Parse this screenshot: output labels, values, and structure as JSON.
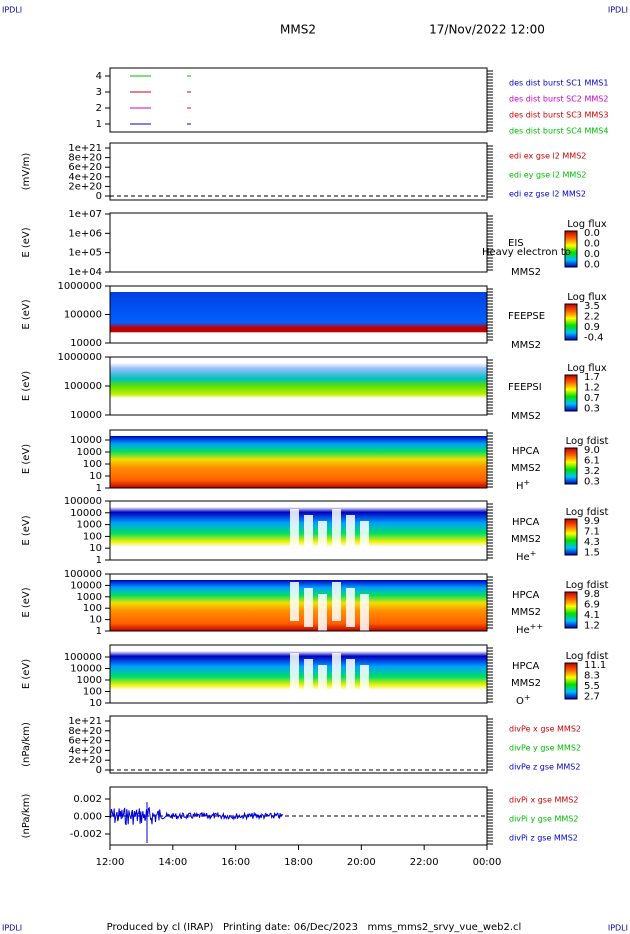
{
  "header": {
    "corner_left": "IPDLI",
    "corner_right": "IPDLI",
    "spacecraft": "MMS2",
    "datetime": "17/Nov/2022 12:00"
  },
  "footer": {
    "corner_left": "IPDLI",
    "corner_right": "IPDLI",
    "text": "Produced by cl (IRAP)   Printing date: 06/Dec/2023   mms_mms2_srvy_vue_web2.cl"
  },
  "xaxis": {
    "ticks": [
      "12:00",
      "14:00",
      "16:00",
      "18:00",
      "20:00",
      "22:00",
      "00:00"
    ]
  },
  "panels": [
    {
      "ylabel": "",
      "yticks": [
        "4",
        "3",
        "2",
        "1"
      ],
      "legend": [
        {
          "text": "des dist burst SC1 MMS1",
          "color": "#0000cc"
        },
        {
          "text": "des dist burst SC2 MMS2",
          "color": "#cc00cc"
        },
        {
          "text": "des dist burst SC3 MMS3",
          "color": "#cc0000"
        },
        {
          "text": "des dist burst SC4 MMS4",
          "color": "#00bb00"
        }
      ]
    },
    {
      "ylabel": "(mV/m)",
      "yticks": [
        "1e+21",
        "8e+20",
        "6e+20",
        "4e+20",
        "2e+20",
        "0"
      ],
      "legend": [
        {
          "text": "edi ex gse l2 MMS2",
          "color": "#cc0000"
        },
        {
          "text": "edi ey gse l2 MMS2",
          "color": "#00bb00"
        },
        {
          "text": "edi ez gse l2 MMS2",
          "color": "#0000cc"
        }
      ]
    },
    {
      "ylabel": "E (eV)",
      "yticks": [
        "1e+07",
        "1e+06",
        "1e+05",
        "1e+04"
      ],
      "colorbar": {
        "title": "Log flux",
        "ticks": [
          "0.0",
          "0.0",
          "0.0",
          "0.0"
        ]
      },
      "instrument": "EIS",
      "spacecraft": "MMS2",
      "overlay": "Heavy electron to"
    },
    {
      "ylabel": "E (eV)",
      "yticks": [
        "1000000",
        "100000",
        "10000"
      ],
      "colorbar": {
        "title": "Log flux",
        "ticks": [
          "3.5",
          "2.2",
          "0.9",
          "-0.4"
        ]
      },
      "instrument": "FEEPSE",
      "spacecraft": "MMS2"
    },
    {
      "ylabel": "E (eV)",
      "yticks": [
        "1000000",
        "100000",
        "10000"
      ],
      "colorbar": {
        "title": "Log flux",
        "ticks": [
          "1.7",
          "1.2",
          "0.7",
          "0.3"
        ]
      },
      "instrument": "FEEPSI",
      "spacecraft": "MMS2"
    },
    {
      "ylabel": "E (eV)",
      "yticks": [
        "10000",
        "1000",
        "100",
        "10",
        "1"
      ],
      "colorbar": {
        "title": "Log fdist",
        "ticks": [
          "9.0",
          "6.1",
          "3.2",
          "0.3"
        ]
      },
      "instrument": "HPCA",
      "spacecraft": "MMS2",
      "species": "H",
      "charge": "+"
    },
    {
      "ylabel": "E (eV)",
      "yticks": [
        "100000",
        "10000",
        "1000",
        "100",
        "10",
        "1"
      ],
      "colorbar": {
        "title": "Log fdist",
        "ticks": [
          "9.9",
          "7.1",
          "4.3",
          "1.5"
        ]
      },
      "instrument": "HPCA",
      "spacecraft": "MMS2",
      "species": "He",
      "charge": "+"
    },
    {
      "ylabel": "E (eV)",
      "yticks": [
        "100000",
        "10000",
        "1000",
        "100",
        "10",
        "1"
      ],
      "colorbar": {
        "title": "Log fdist",
        "ticks": [
          "9.8",
          "6.9",
          "4.1",
          "1.2"
        ]
      },
      "instrument": "HPCA",
      "spacecraft": "MMS2",
      "species": "He",
      "charge": "++"
    },
    {
      "ylabel": "E (eV)",
      "yticks": [
        "100000",
        "10000",
        "1000",
        "100",
        "10"
      ],
      "colorbar": {
        "title": "Log fdist",
        "ticks": [
          "11.1",
          "8.3",
          "5.5",
          "2.7"
        ]
      },
      "instrument": "HPCA",
      "spacecraft": "MMS2",
      "species": "O",
      "charge": "+"
    },
    {
      "ylabel": "(nPa/km)",
      "yticks": [
        "1e+21",
        "8e+20",
        "6e+20",
        "4e+20",
        "2e+20",
        "0"
      ],
      "legend": [
        {
          "text": "divPe x gse MMS2",
          "color": "#cc0000"
        },
        {
          "text": "divPe y gse MMS2",
          "color": "#00bb00"
        },
        {
          "text": "divPe z gse MMS2",
          "color": "#0000cc"
        }
      ]
    },
    {
      "ylabel": "(nPa/km)",
      "yticks": [
        "0.002",
        "0.000",
        "-0.002"
      ],
      "legend": [
        {
          "text": "divPi x gse MMS2",
          "color": "#cc0000"
        },
        {
          "text": "divPi y gse MMS2",
          "color": "#00bb00"
        },
        {
          "text": "divPi z gse MMS2",
          "color": "#0000cc"
        }
      ]
    }
  ]
}
